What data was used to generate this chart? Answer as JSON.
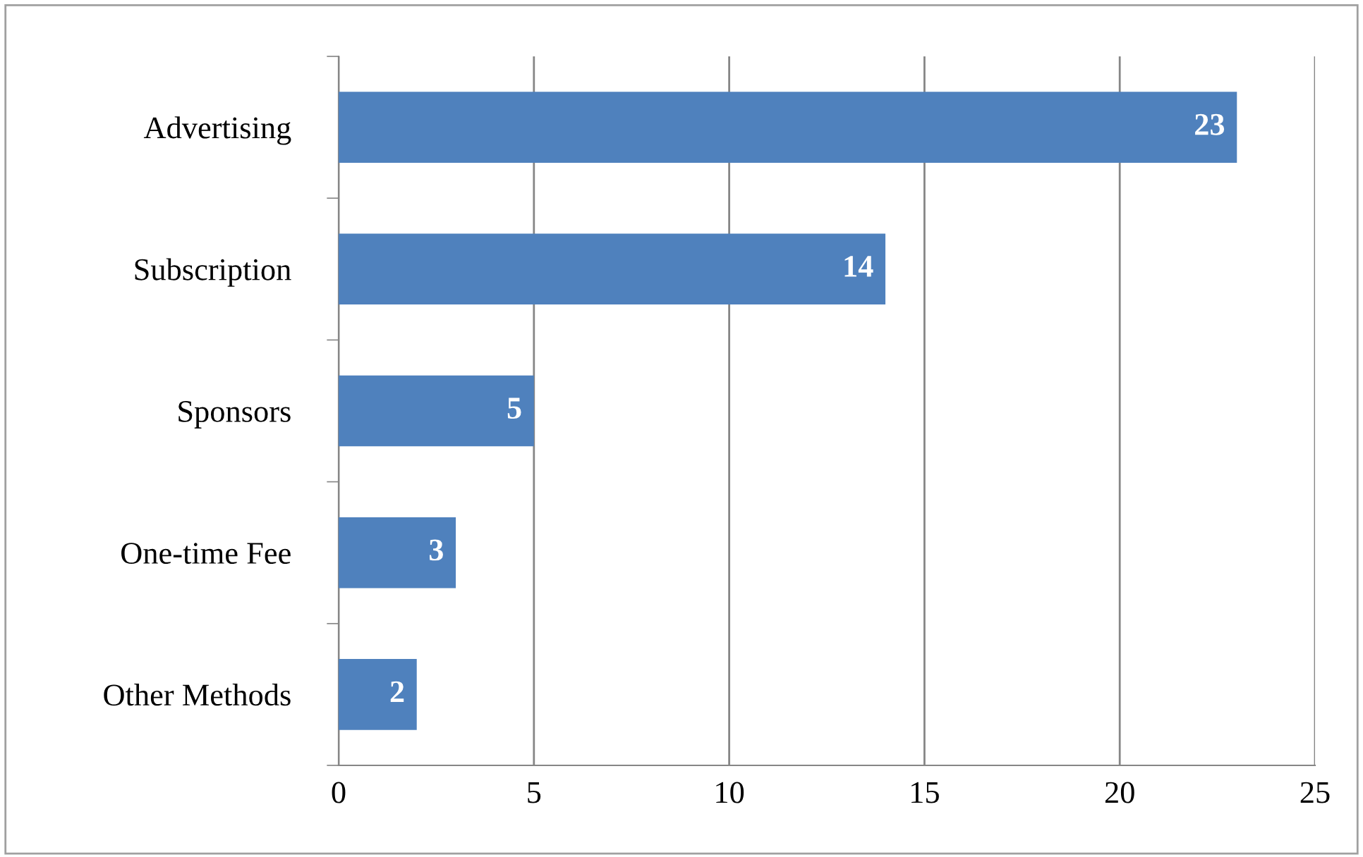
{
  "chart_data": {
    "type": "bar",
    "orientation": "horizontal",
    "categories": [
      "Advertising",
      "Subscription",
      "Sponsors",
      "One-time Fee",
      "Other Methods"
    ],
    "values": [
      23,
      14,
      5,
      3,
      2
    ],
    "color": "#4f81bd",
    "xlim": [
      0,
      25
    ],
    "xticks": [
      0,
      5,
      10,
      15,
      20,
      25
    ],
    "grid": "x",
    "data_labels": true
  }
}
